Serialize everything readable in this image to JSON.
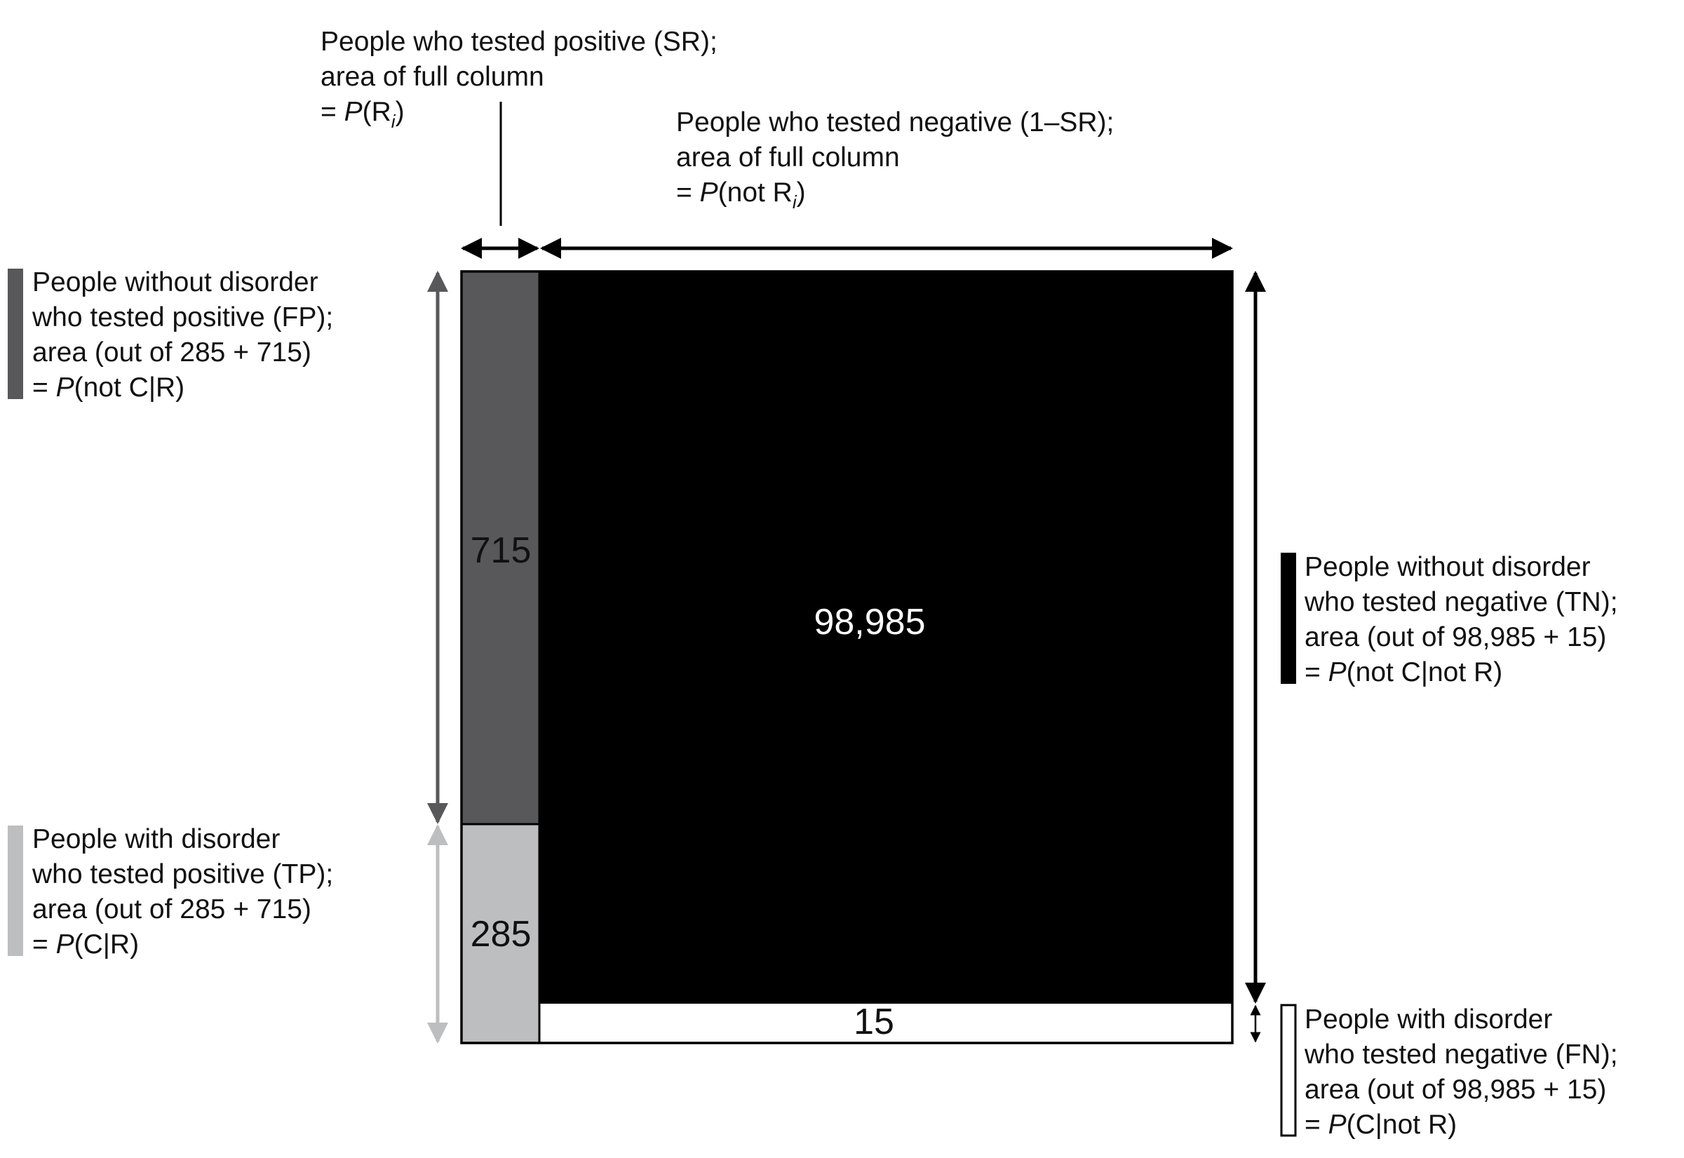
{
  "colors": {
    "fp": "#58585a",
    "tp": "#bdbec0",
    "tn": "#000000",
    "fn": "#ffffff",
    "ink": "#111111"
  },
  "cells": {
    "fp": "715",
    "tp": "285",
    "tn": "98,985",
    "fn": "15"
  },
  "labels": {
    "sr": {
      "line1": "People who tested positive (SR);",
      "line2": "area of full column",
      "eq": "= ",
      "p": "P",
      "open": "(R",
      "sub": "i",
      "close": ")"
    },
    "neg": {
      "line1": "People who tested negative (1–SR);",
      "line2": "area of full column",
      "eq": "= ",
      "p": "P",
      "open": "(not R",
      "sub": "i",
      "close": ")"
    },
    "fp": {
      "line1": "People without disorder",
      "line2": "who tested positive (FP);",
      "line3": "area (out of 285 + 715)",
      "eq": "= ",
      "p": "P",
      "rest": "(not C|R)"
    },
    "tp": {
      "line1": "People with disorder",
      "line2": "who tested positive (TP);",
      "line3": "area (out of 285 + 715)",
      "eq": "= ",
      "p": "P",
      "rest": "(C|R)"
    },
    "tn": {
      "line1": "People without disorder",
      "line2": "who tested negative (TN);",
      "line3": "area (out of 98,985 + 15)",
      "eq": "= ",
      "p": "P",
      "rest": "(not C|not R)"
    },
    "fn": {
      "line1": "People with disorder",
      "line2": "who tested negative (FN);",
      "line3": "area (out of 98,985 + 15)",
      "eq": "= ",
      "p": "P",
      "rest": "(C|not R)"
    }
  }
}
